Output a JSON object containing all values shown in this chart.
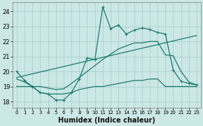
{
  "xlabel": "Humidex (Indice chaleur)",
  "bg_color": "#cce8e6",
  "grid_color": "#aacfcc",
  "line_color": "#1a7a6e",
  "xlim": [
    -0.5,
    23.5
  ],
  "ylim": [
    17.6,
    24.6
  ],
  "yticks": [
    18,
    19,
    20,
    21,
    22,
    23,
    24
  ],
  "xticks": [
    0,
    1,
    2,
    3,
    4,
    5,
    6,
    7,
    8,
    9,
    10,
    11,
    12,
    13,
    14,
    15,
    16,
    17,
    18,
    19,
    20,
    21,
    22,
    23
  ],
  "line1_x": [
    0,
    1,
    2,
    3,
    4,
    5,
    6,
    7,
    8,
    9,
    10,
    11,
    12,
    13,
    14,
    15,
    16,
    17,
    18,
    19,
    20,
    21,
    22,
    23
  ],
  "line1_y": [
    20.0,
    19.4,
    19.0,
    18.6,
    18.5,
    18.1,
    18.1,
    18.6,
    19.5,
    20.9,
    20.8,
    24.3,
    22.85,
    23.1,
    22.5,
    22.75,
    22.9,
    22.8,
    22.6,
    22.5,
    20.1,
    19.35,
    19.2,
    19.1
  ],
  "line2_x": [
    0,
    1,
    2,
    3,
    4,
    5,
    6,
    7,
    8,
    9,
    10,
    11,
    12,
    13,
    14,
    15,
    16,
    17,
    18,
    19,
    20,
    21,
    22,
    23
  ],
  "line2_y": [
    19.0,
    19.0,
    19.0,
    18.6,
    18.5,
    18.5,
    18.5,
    18.6,
    18.8,
    18.9,
    19.0,
    19.0,
    19.1,
    19.2,
    19.3,
    19.4,
    19.4,
    19.5,
    19.5,
    19.0,
    19.0,
    19.0,
    19.0,
    19.0
  ],
  "line3_x": [
    0,
    1,
    2,
    3,
    4,
    5,
    6,
    7,
    8,
    9,
    10,
    11,
    12,
    13,
    14,
    15,
    16,
    17,
    18,
    19,
    20,
    21,
    22,
    23
  ],
  "line3_y": [
    19.5,
    19.3,
    19.0,
    19.0,
    18.9,
    18.8,
    18.85,
    19.2,
    19.6,
    20.0,
    20.4,
    20.8,
    21.15,
    21.5,
    21.7,
    21.9,
    21.9,
    22.0,
    22.0,
    21.1,
    21.05,
    20.0,
    19.3,
    19.1
  ],
  "line4_x": [
    0,
    23
  ],
  "line4_y": [
    19.6,
    22.4
  ]
}
